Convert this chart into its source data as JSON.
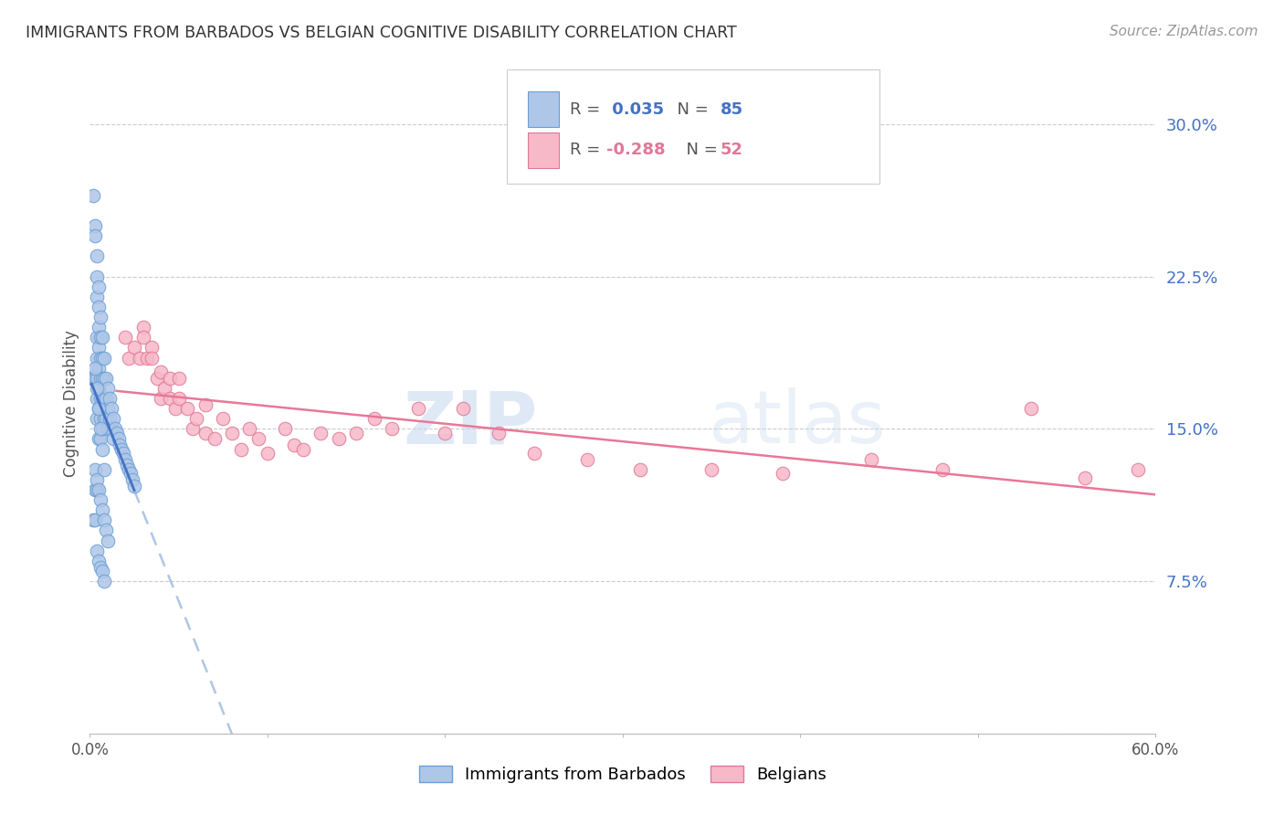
{
  "title": "IMMIGRANTS FROM BARBADOS VS BELGIAN COGNITIVE DISABILITY CORRELATION CHART",
  "source": "Source: ZipAtlas.com",
  "ylabel": "Cognitive Disability",
  "yticks": [
    0.0,
    0.075,
    0.15,
    0.225,
    0.3
  ],
  "ytick_labels": [
    "",
    "7.5%",
    "15.0%",
    "22.5%",
    "30.0%"
  ],
  "xmin": 0.0,
  "xmax": 0.6,
  "ymin": 0.0,
  "ymax": 0.325,
  "r_barbados": 0.035,
  "n_barbados": 85,
  "r_belgians": -0.288,
  "n_belgians": 52,
  "legend_label1": "Immigrants from Barbados",
  "legend_label2": "Belgians",
  "watermark_zip": "ZIP",
  "watermark_atlas": "atlas",
  "bg_color": "#ffffff",
  "grid_color": "#cccccc",
  "title_color": "#333333",
  "ytick_color": "#4472c4",
  "source_color": "#999999",
  "blue_scatter_color": "#aec6e8",
  "blue_scatter_edge": "#6a9fd4",
  "pink_scatter_color": "#f7b8c8",
  "pink_scatter_edge": "#e07898",
  "blue_trend_color": "#4472c4",
  "blue_trend_dash_color": "#a0bce0",
  "pink_trend_color": "#e87898",
  "barbados_x": [
    0.001,
    0.002,
    0.002,
    0.002,
    0.003,
    0.003,
    0.003,
    0.003,
    0.003,
    0.004,
    0.004,
    0.004,
    0.004,
    0.004,
    0.004,
    0.004,
    0.004,
    0.004,
    0.005,
    0.005,
    0.005,
    0.005,
    0.005,
    0.005,
    0.005,
    0.005,
    0.006,
    0.006,
    0.006,
    0.006,
    0.006,
    0.006,
    0.006,
    0.007,
    0.007,
    0.007,
    0.007,
    0.007,
    0.008,
    0.008,
    0.008,
    0.008,
    0.009,
    0.009,
    0.009,
    0.01,
    0.01,
    0.01,
    0.011,
    0.011,
    0.012,
    0.012,
    0.013,
    0.013,
    0.014,
    0.015,
    0.016,
    0.017,
    0.018,
    0.019,
    0.02,
    0.021,
    0.022,
    0.023,
    0.024,
    0.025,
    0.003,
    0.004,
    0.005,
    0.006,
    0.007,
    0.008,
    0.009,
    0.01,
    0.004,
    0.005,
    0.006,
    0.007,
    0.008,
    0.003,
    0.004,
    0.005,
    0.006,
    0.007,
    0.008
  ],
  "barbados_y": [
    0.175,
    0.265,
    0.175,
    0.105,
    0.25,
    0.245,
    0.175,
    0.12,
    0.105,
    0.235,
    0.225,
    0.215,
    0.195,
    0.185,
    0.175,
    0.165,
    0.155,
    0.12,
    0.22,
    0.21,
    0.2,
    0.19,
    0.18,
    0.17,
    0.16,
    0.145,
    0.205,
    0.195,
    0.185,
    0.175,
    0.165,
    0.155,
    0.145,
    0.195,
    0.185,
    0.175,
    0.165,
    0.15,
    0.185,
    0.175,
    0.165,
    0.155,
    0.175,
    0.165,
    0.155,
    0.17,
    0.16,
    0.15,
    0.165,
    0.155,
    0.16,
    0.15,
    0.155,
    0.145,
    0.15,
    0.148,
    0.145,
    0.142,
    0.14,
    0.138,
    0.135,
    0.132,
    0.13,
    0.128,
    0.125,
    0.122,
    0.13,
    0.125,
    0.12,
    0.115,
    0.11,
    0.105,
    0.1,
    0.095,
    0.09,
    0.085,
    0.082,
    0.08,
    0.075,
    0.18,
    0.17,
    0.16,
    0.15,
    0.14,
    0.13
  ],
  "belgians_x": [
    0.02,
    0.022,
    0.025,
    0.028,
    0.03,
    0.03,
    0.032,
    0.035,
    0.035,
    0.038,
    0.04,
    0.04,
    0.042,
    0.045,
    0.045,
    0.048,
    0.05,
    0.05,
    0.055,
    0.058,
    0.06,
    0.065,
    0.065,
    0.07,
    0.075,
    0.08,
    0.085,
    0.09,
    0.095,
    0.1,
    0.11,
    0.115,
    0.12,
    0.13,
    0.14,
    0.15,
    0.16,
    0.17,
    0.185,
    0.2,
    0.21,
    0.23,
    0.25,
    0.28,
    0.31,
    0.35,
    0.39,
    0.44,
    0.48,
    0.53,
    0.56,
    0.59
  ],
  "belgians_y": [
    0.195,
    0.185,
    0.19,
    0.185,
    0.2,
    0.195,
    0.185,
    0.19,
    0.185,
    0.175,
    0.178,
    0.165,
    0.17,
    0.165,
    0.175,
    0.16,
    0.165,
    0.175,
    0.16,
    0.15,
    0.155,
    0.148,
    0.162,
    0.145,
    0.155,
    0.148,
    0.14,
    0.15,
    0.145,
    0.138,
    0.15,
    0.142,
    0.14,
    0.148,
    0.145,
    0.148,
    0.155,
    0.15,
    0.16,
    0.148,
    0.16,
    0.148,
    0.138,
    0.135,
    0.13,
    0.13,
    0.128,
    0.135,
    0.13,
    0.16,
    0.126,
    0.13
  ]
}
